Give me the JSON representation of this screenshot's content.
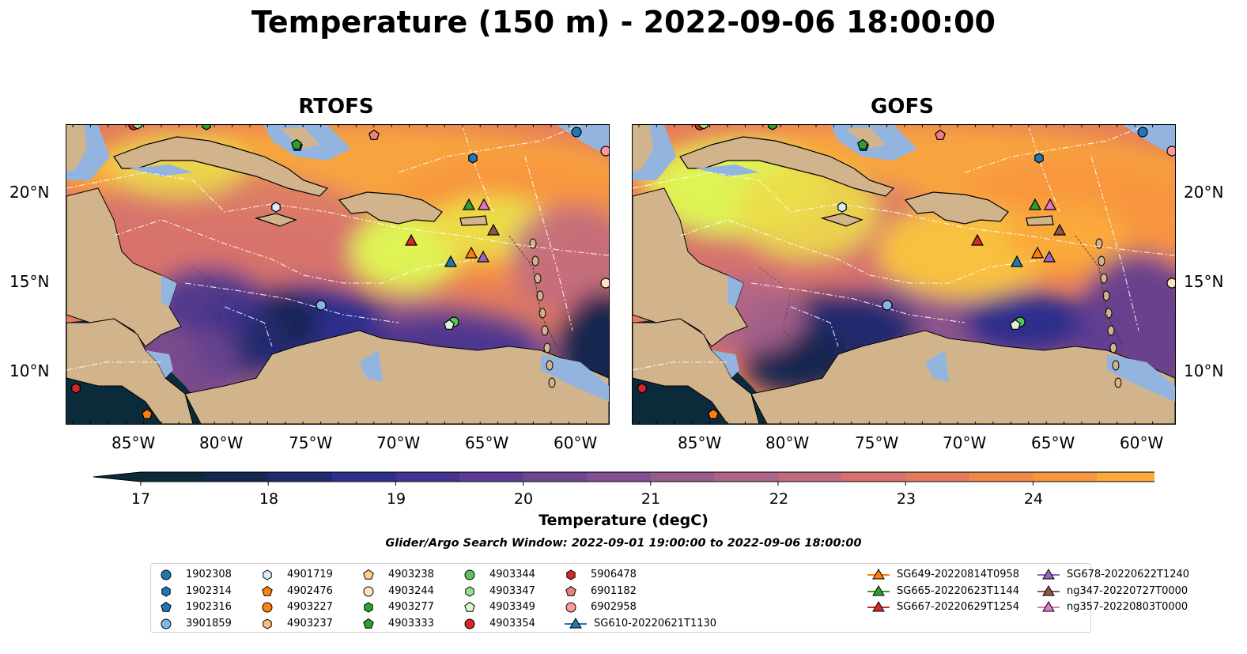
{
  "title": "Temperature (150 m) - 2022-09-06 18:00:00",
  "panels": [
    {
      "title": "RTOFS"
    },
    {
      "title": "GOFS"
    }
  ],
  "lon_ticks": [
    "85°W",
    "80°W",
    "75°W",
    "70°W",
    "65°W",
    "60°W"
  ],
  "lat_ticks": [
    "20°N",
    "15°N",
    "10°N"
  ],
  "colorbar": {
    "label": "Temperature (degC)",
    "ticks": [
      "17",
      "18",
      "19",
      "20",
      "21",
      "22",
      "23",
      "24"
    ],
    "colors": [
      "#0b2a3a",
      "#15284f",
      "#202b6e",
      "#2e2f8c",
      "#45338f",
      "#5c3c92",
      "#6e4690",
      "#82508f",
      "#975b8c",
      "#ad648a",
      "#c26b7f",
      "#d5726f",
      "#e57a5c",
      "#f2874a",
      "#f8963d",
      "#faa93b",
      "#f8c13f",
      "#ecdc4a",
      "#dff354"
    ]
  },
  "search_window": "Glider/Argo Search Window: 2022-09-01 19:00:00 to 2022-09-06 18:00:00",
  "colors": {
    "land": "#d2b48c",
    "shelf": "#94b4e0",
    "deep_cold": "#0b2a3a"
  },
  "legend": {
    "items": [
      {
        "label": "1902308",
        "marker": "circle",
        "color": "#1f77b4"
      },
      {
        "label": "1902314",
        "marker": "hexagon",
        "color": "#1f77b4"
      },
      {
        "label": "1902316",
        "marker": "pentagon",
        "color": "#1f77b4"
      },
      {
        "label": "3901859",
        "marker": "circle",
        "color": "#7fb8e6"
      },
      {
        "label": "4901719",
        "marker": "hexagon",
        "color": "#dbe9fa"
      },
      {
        "label": "4902476",
        "marker": "pentagon",
        "color": "#ff7f0e"
      },
      {
        "label": "4903227",
        "marker": "circle",
        "color": "#ff7f0e"
      },
      {
        "label": "4903237",
        "marker": "hexagon",
        "color": "#ffbb78"
      },
      {
        "label": "4903238",
        "marker": "pentagon",
        "color": "#ffcf90"
      },
      {
        "label": "4903244",
        "marker": "circle",
        "color": "#ffe1c0"
      },
      {
        "label": "4903277",
        "marker": "hexagon",
        "color": "#2ca02c"
      },
      {
        "label": "4903333",
        "marker": "pentagon",
        "color": "#2ca02c"
      },
      {
        "label": "4903344",
        "marker": "circle",
        "color": "#5cc45c"
      },
      {
        "label": "4903347",
        "marker": "hexagon",
        "color": "#98df8a"
      },
      {
        "label": "4903349",
        "marker": "pentagon",
        "color": "#d8f5d0"
      },
      {
        "label": "4903354",
        "marker": "circle",
        "color": "#d62728"
      },
      {
        "label": "5906478",
        "marker": "hexagon",
        "color": "#d62728"
      },
      {
        "label": "6901182",
        "marker": "pentagon",
        "color": "#f07f7f"
      },
      {
        "label": "6902958",
        "marker": "circle",
        "color": "#ff9896"
      },
      {
        "label": "SG610-20220621T1130",
        "marker": "triangle-line",
        "color": "#1f77b4"
      },
      {
        "label": "SG649-20220814T0958",
        "marker": "triangle-line",
        "color": "#ff7f0e"
      },
      {
        "label": "SG665-20220623T1144",
        "marker": "triangle-line",
        "color": "#2ca02c"
      },
      {
        "label": "SG667-20220629T1254",
        "marker": "triangle-line",
        "color": "#d62728"
      },
      {
        "label": "SG678-20220622T1240",
        "marker": "triangle-line",
        "color": "#9467bd"
      },
      {
        "label": "ng347-20220727T0000",
        "marker": "triangle-line",
        "color": "#8c564b"
      },
      {
        "label": "ng357-20220803T0000",
        "marker": "triangle-line",
        "color": "#e377c2"
      }
    ]
  }
}
